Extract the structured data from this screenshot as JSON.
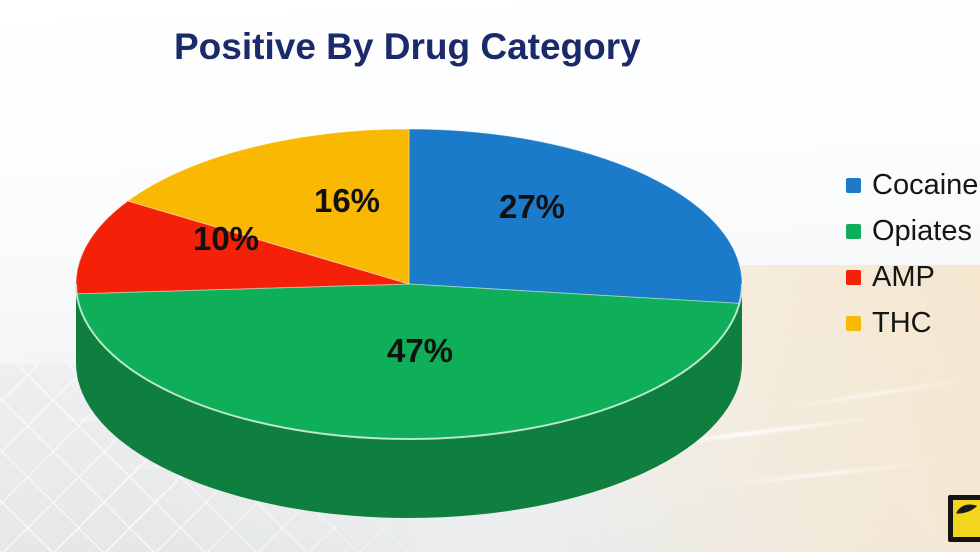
{
  "title": "Positive By Drug Category",
  "title_color": "#1a2a6b",
  "label_text_color": "#111111",
  "legend_text_color": "#151515",
  "chart_data": {
    "type": "pie",
    "projection": "3d",
    "title": "Positive By Drug Category",
    "start_angle_deg": 0,
    "direction": "clockwise",
    "legend_position": "right",
    "data_labels": "percent",
    "slices": [
      {
        "label": "Cocaine",
        "value": 27,
        "display": "27%",
        "color": "#1b7ac9",
        "side_color": "#11548c"
      },
      {
        "label": "Opiates",
        "value": 47,
        "display": "47%",
        "color": "#0fae58",
        "side_color": "#0e7f3f"
      },
      {
        "label": "AMP",
        "value": 10,
        "display": "10%",
        "color": "#f42108",
        "side_color": "#a81505"
      },
      {
        "label": "THC",
        "value": 16,
        "display": "16%",
        "color": "#f9b801",
        "side_color": "#aa7d00"
      }
    ]
  },
  "watermark": {
    "fill": "#f2d51e",
    "border": "#141414",
    "mark": "#1a1a1a"
  }
}
